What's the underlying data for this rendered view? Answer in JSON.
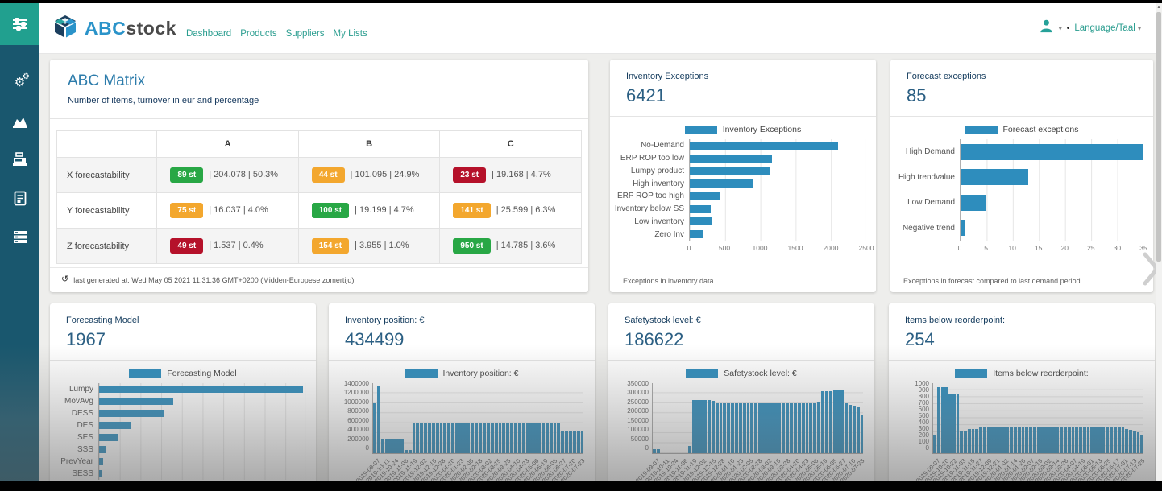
{
  "header": {
    "logo_abc": "ABC",
    "logo_stock": "stock",
    "nav": [
      "Dashboard",
      "Products",
      "Suppliers",
      "My Lists"
    ],
    "language_label": "Language/Taal"
  },
  "sidebar": {
    "items": [
      "filters-icon",
      "gears-icon",
      "analytics-chart-icon",
      "cash-register-icon",
      "report-document-icon",
      "list-rows-icon"
    ]
  },
  "colors": {
    "accent_teal": "#2a9d8f",
    "sidebar_bg": "#19576e",
    "sidebar_active": "#21a08f",
    "bar_blue": "#2e8dbd",
    "logo_blue": "#2a93c9",
    "title_blue": "#2d7cab",
    "badge_green": "#28a745",
    "badge_orange": "#f3a72e",
    "badge_red": "#b5112a"
  },
  "abc_matrix": {
    "title": "ABC Matrix",
    "subtitle": "Number of items, turnover in eur and percentage",
    "columns": [
      "A",
      "B",
      "C"
    ],
    "rows": [
      {
        "label": "X forecastability",
        "cells": [
          {
            "badge": "89 st",
            "color": "badge_green",
            "text": "| 204.078 | 50.3%"
          },
          {
            "badge": "44 st",
            "color": "badge_orange",
            "text": "| 101.095 | 24.9%"
          },
          {
            "badge": "23 st",
            "color": "badge_red",
            "text": "| 19.168 | 4.7%"
          }
        ]
      },
      {
        "label": "Y forecastability",
        "cells": [
          {
            "badge": "75 st",
            "color": "badge_orange",
            "text": "| 16.037 | 4.0%"
          },
          {
            "badge": "100 st",
            "color": "badge_green",
            "text": "| 19.199 | 4.7%"
          },
          {
            "badge": "141 st",
            "color": "badge_orange",
            "text": "| 25.599 | 6.3%"
          }
        ]
      },
      {
        "label": "Z forecastability",
        "cells": [
          {
            "badge": "49 st",
            "color": "badge_red",
            "text": "| 1.537 | 0.4%"
          },
          {
            "badge": "154 st",
            "color": "badge_orange",
            "text": "| 3.955 | 1.0%"
          },
          {
            "badge": "950 st",
            "color": "badge_green",
            "text": "| 14.785 | 3.6%"
          }
        ]
      }
    ],
    "footer": "last generated at: Wed May 05 2021 11:31:36 GMT+0200 (Midden-Europese zomertijd)"
  },
  "cards": {
    "inventory_exceptions": {
      "title": "Inventory Exceptions",
      "value": "6421",
      "footer": "Exceptions in inventory data"
    },
    "forecast_exceptions": {
      "title": "Forecast exceptions",
      "value": "85",
      "footer": "Exceptions in forecast compared to last demand period"
    },
    "forecasting_model": {
      "title": "Forecasting Model",
      "value": "1967"
    },
    "inventory_position": {
      "title": "Inventory position: €",
      "value": "434499"
    },
    "safetystock": {
      "title": "Safetystock level: €",
      "value": "186622"
    },
    "items_below_reorderpoint": {
      "title": "Items below reorderpoint:",
      "value": "254"
    }
  },
  "chart_data": [
    {
      "id": "inventory_exceptions",
      "type": "bar",
      "orientation": "horizontal",
      "legend": "Inventory Exceptions",
      "categories": [
        "No-Demand",
        "ERP ROP too low",
        "Lumpy product",
        "High inventory",
        "ERP ROP too high",
        "Inventory below SS",
        "Low inventory",
        "Zero Inv"
      ],
      "values": [
        2100,
        1165,
        1140,
        890,
        430,
        300,
        305,
        190
      ],
      "xlim": [
        0,
        2500
      ],
      "xticks": [
        0,
        500,
        1000,
        1500,
        2000,
        2500
      ]
    },
    {
      "id": "forecast_exceptions",
      "type": "bar",
      "orientation": "horizontal",
      "legend": "Forecast exceptions",
      "categories": [
        "High Demand",
        "High trendvalue",
        "Low Demand",
        "Negative trend"
      ],
      "values": [
        35,
        13,
        5,
        1
      ],
      "xlim": [
        0,
        35
      ],
      "xticks": [
        0,
        5,
        10,
        15,
        20,
        25,
        30,
        35
      ]
    },
    {
      "id": "forecasting_model",
      "type": "bar",
      "orientation": "horizontal",
      "legend": "Forecasting Model",
      "categories": [
        "Lumpy",
        "MovAvg",
        "DESS",
        "DES",
        "SES",
        "SSS",
        "PrevYear",
        "SESS"
      ],
      "values": [
        985,
        358,
        310,
        152,
        88,
        35,
        18,
        10
      ],
      "xlim": [
        0,
        1000
      ],
      "xticks": [
        0,
        100,
        200,
        300,
        400,
        500,
        600,
        700,
        800,
        900,
        1000
      ]
    },
    {
      "id": "inventory_position",
      "type": "bar",
      "orientation": "vertical",
      "legend": "Inventory position: €",
      "ylim": [
        0,
        1400000
      ],
      "yticks": [
        0,
        200000,
        400000,
        600000,
        800000,
        1000000,
        1200000,
        1400000
      ],
      "x_labels": [
        "2019-09-07",
        "2019-10-11",
        "2019-10-24",
        "2019-11-06",
        "2019-11-19",
        "2019-12-02",
        "2019-12-15",
        "2019-12-28",
        "2020-01-10",
        "2020-01-23",
        "2020-02-05",
        "2020-02-18",
        "2020-03-02",
        "2020-03-15",
        "2020-03-28",
        "2020-04-10",
        "2020-04-23",
        "2020-05-06",
        "2020-05-19",
        "2020-06-05",
        "2020-06-27",
        "2020-07-10",
        "2020-07-23"
      ],
      "values": [
        990000,
        1330000,
        285000,
        285000,
        285000,
        285000,
        285000,
        285000,
        70000,
        70000,
        600000,
        600000,
        600000,
        600000,
        600000,
        600000,
        600000,
        600000,
        600000,
        600000,
        600000,
        600000,
        600000,
        600000,
        600000,
        600000,
        600000,
        600000,
        600000,
        600000,
        600000,
        600000,
        600000,
        600000,
        600000,
        600000,
        600000,
        600000,
        600000,
        600000,
        600000,
        600000,
        600000,
        600000,
        600000,
        600000,
        615000,
        615000,
        440000,
        440000,
        440000,
        440000,
        440000,
        440000
      ]
    },
    {
      "id": "safetystock",
      "type": "bar",
      "orientation": "vertical",
      "legend": "Safetystock level: €",
      "ylim": [
        0,
        350000
      ],
      "yticks": [
        0,
        50000,
        100000,
        150000,
        200000,
        250000,
        300000,
        350000
      ],
      "x_labels": [
        "2019-09-07",
        "2019-10-11",
        "2019-10-24",
        "2019-11-06",
        "2019-11-19",
        "2019-12-02",
        "2019-12-15",
        "2019-12-28",
        "2020-01-10",
        "2020-01-23",
        "2020-02-05",
        "2020-02-18",
        "2020-03-02",
        "2020-03-15",
        "2020-03-28",
        "2020-04-10",
        "2020-04-23",
        "2020-05-06",
        "2020-05-19",
        "2020-06-05",
        "2020-06-27",
        "2020-07-10",
        "2020-07-23"
      ],
      "values": [
        20000,
        20000,
        0,
        0,
        0,
        0,
        0,
        0,
        0,
        35000,
        265000,
        265000,
        265000,
        265000,
        265000,
        260000,
        250000,
        250000,
        250000,
        250000,
        250000,
        250000,
        250000,
        250000,
        250000,
        250000,
        250000,
        250000,
        250000,
        250000,
        250000,
        250000,
        250000,
        250000,
        250000,
        250000,
        250000,
        250000,
        250000,
        250000,
        250000,
        250000,
        255000,
        310000,
        310000,
        310000,
        312000,
        315000,
        315000,
        250000,
        240000,
        235000,
        230000,
        190000
      ]
    },
    {
      "id": "items_below_reorderpoint",
      "type": "bar",
      "orientation": "vertical",
      "legend": "Items below reorderpoint:",
      "ylim": [
        0,
        1000
      ],
      "yticks": [
        0,
        100,
        200,
        300,
        400,
        500,
        600,
        700,
        800,
        900,
        1000
      ],
      "x_labels": [
        "2019-09-07",
        "2019-10-10",
        "2019-10-22",
        "2019-11-03",
        "2019-11-15",
        "2019-11-27",
        "2019-12-09",
        "2019-12-21",
        "2020-01-02",
        "2020-01-14",
        "2020-01-26",
        "2020-02-07",
        "2020-02-19",
        "2020-03-02",
        "2020-03-14",
        "2020-03-26",
        "2020-04-07",
        "2020-04-19",
        "2020-05-01",
        "2020-05-13",
        "2020-05-25",
        "2020-06-17",
        "2020-07-01",
        "2020-07-13",
        "2020-07-25"
      ],
      "values": [
        250,
        940,
        940,
        940,
        850,
        850,
        850,
        320,
        320,
        340,
        340,
        345,
        370,
        370,
        370,
        370,
        370,
        370,
        370,
        370,
        370,
        370,
        370,
        370,
        370,
        370,
        370,
        370,
        370,
        370,
        370,
        370,
        370,
        370,
        370,
        370,
        370,
        370,
        370,
        370,
        370,
        370,
        370,
        370,
        375,
        375,
        380,
        380,
        380,
        370,
        345,
        330,
        320,
        300,
        270
      ]
    }
  ]
}
